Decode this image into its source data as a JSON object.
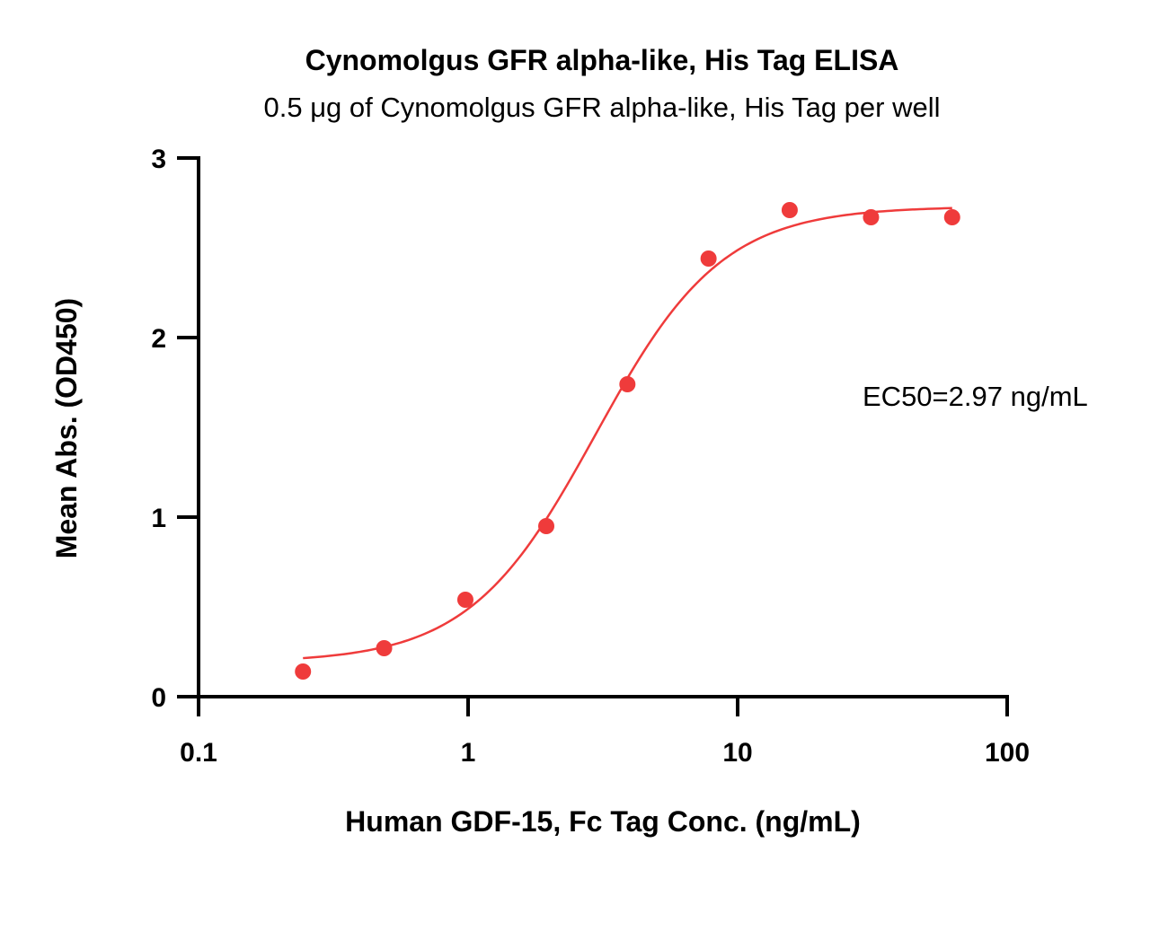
{
  "chart_data": {
    "type": "scatter",
    "title": "Cynomolgus GFR alpha-like, His Tag ELISA",
    "subtitle": "0.5 μg of Cynomolgus GFR alpha-like, His Tag per well",
    "xlabel": "Human GDF-15, Fc Tag Conc. (ng/mL)",
    "ylabel": "Mean Abs. (OD450)",
    "xscale": "log",
    "xlim": [
      0.1,
      100
    ],
    "ylim": [
      0,
      3
    ],
    "xticks": [
      0.1,
      1,
      10,
      100
    ],
    "xtick_labels": [
      "0.1",
      "1",
      "10",
      "100"
    ],
    "yticks": [
      0,
      1,
      2,
      3
    ],
    "ytick_labels": [
      "0",
      "1",
      "2",
      "3"
    ],
    "grid": false,
    "legend": "none",
    "color": "#ef3b3b",
    "series": [
      {
        "x": [
          0.244,
          0.488,
          0.977,
          1.95,
          3.9,
          7.8,
          15.6,
          31.25,
          62.5
        ],
        "y": [
          0.14,
          0.27,
          0.54,
          0.95,
          1.74,
          2.44,
          2.71,
          2.67,
          2.67
        ]
      }
    ],
    "fit": {
      "model": "4PL",
      "bottom": 0.19,
      "top": 2.73,
      "ec50": 2.97,
      "hill": 1.85,
      "x_range": [
        0.244,
        62.5
      ]
    },
    "annotations": [
      {
        "text": "EC50=2.97 ng/mL"
      }
    ]
  }
}
